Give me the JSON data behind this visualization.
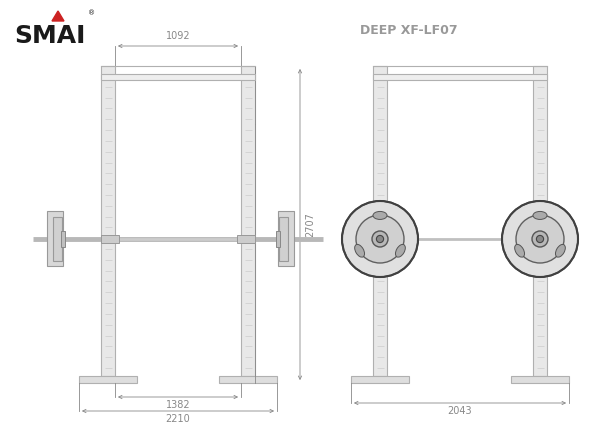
{
  "bg_color": "#ffffff",
  "line_color": "#b0b0b0",
  "dim_color": "#888888",
  "title_color": "#999999",
  "smai_black": "#1a1a1a",
  "smai_red": "#cc2222",
  "title_text": "DEEP XF-LF07",
  "dim_1092": "1092",
  "dim_2707": "2707",
  "dim_1382": "1382",
  "dim_2210": "2210",
  "dim_2043": "2043",
  "upright_color": "#e8e8e8",
  "upright_edge": "#aaaaaa",
  "hole_color": "#cccccc",
  "base_color": "#dedede",
  "bar_color": "#c0c0c0",
  "plate_color": "#d0d0d0",
  "plate_dark": "#aaaaaa",
  "circle_outer": "#404040",
  "circle_mid": "#888888",
  "circle_inner": "#606060"
}
